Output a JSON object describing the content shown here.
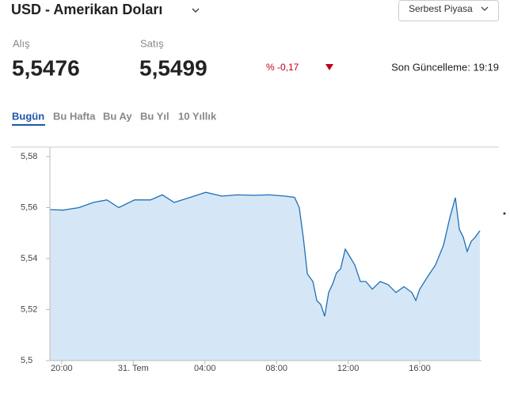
{
  "header": {
    "title": "USD - Amerikan Doları",
    "market": "Serbest Piyasa"
  },
  "quotes": {
    "buy_label": "Alış",
    "buy": "5,5476",
    "sell_label": "Satış",
    "sell": "5,5499",
    "change": "% -0,17",
    "updated": "Son Güncelleme: 19:19"
  },
  "tabs": [
    "Bugün",
    "Bu Hafta",
    "Bu Ay",
    "Bu Yıl",
    "10 Yıllık"
  ],
  "chart_data": {
    "type": "area",
    "color": "#1f6fb5",
    "fill": "#d5e7f6",
    "x": [
      -0.66,
      0.09,
      0.97,
      1.77,
      2.52,
      3.19,
      4.07,
      4.96,
      5.62,
      6.28,
      7.17,
      8.05,
      8.94,
      9.82,
      10.71,
      11.59,
      12.48,
      13.01,
      13.27,
      13.5,
      13.72,
      14.03,
      14.25,
      14.47,
      14.69,
      14.91,
      15.13,
      15.35,
      15.58,
      15.84,
      16.11,
      16.37,
      16.68,
      16.99,
      17.35,
      17.79,
      18.23,
      18.67,
      19.12,
      19.56,
      19.78,
      20.0,
      20.44,
      20.88,
      21.33,
      21.68,
      21.99,
      22.21,
      22.43,
      22.65,
      22.88,
      23.1,
      23.36
    ],
    "values": [
      5.5592,
      5.559,
      5.56,
      5.562,
      5.563,
      5.56,
      5.563,
      5.563,
      5.565,
      5.562,
      5.564,
      5.566,
      5.5645,
      5.565,
      5.5648,
      5.565,
      5.5645,
      5.564,
      5.56,
      5.548,
      5.534,
      5.531,
      5.5235,
      5.522,
      5.5174,
      5.5267,
      5.53,
      5.5344,
      5.536,
      5.5437,
      5.5406,
      5.5375,
      5.531,
      5.531,
      5.528,
      5.531,
      5.5298,
      5.5267,
      5.529,
      5.5267,
      5.5236,
      5.528,
      5.5329,
      5.5375,
      5.5453,
      5.556,
      5.5639,
      5.5515,
      5.5484,
      5.5428,
      5.5468,
      5.5484,
      5.5509
    ],
    "xlim": [
      -0.66,
      23.36
    ],
    "xticks": [
      {
        "value": 0,
        "label": "20:00"
      },
      {
        "value": 4,
        "label": "31. Tem"
      },
      {
        "value": 8,
        "label": "04:00"
      },
      {
        "value": 12,
        "label": "08:00"
      },
      {
        "value": 16,
        "label": "12:00"
      },
      {
        "value": 20,
        "label": "16:00"
      }
    ],
    "ylim": [
      5.5,
      5.58
    ],
    "yticks": [
      {
        "value": 5.5,
        "label": "5,5"
      },
      {
        "value": 5.52,
        "label": "5,52"
      },
      {
        "value": 5.54,
        "label": "5,54"
      },
      {
        "value": 5.56,
        "label": "5,56"
      },
      {
        "value": 5.58,
        "label": "5,58"
      }
    ]
  }
}
